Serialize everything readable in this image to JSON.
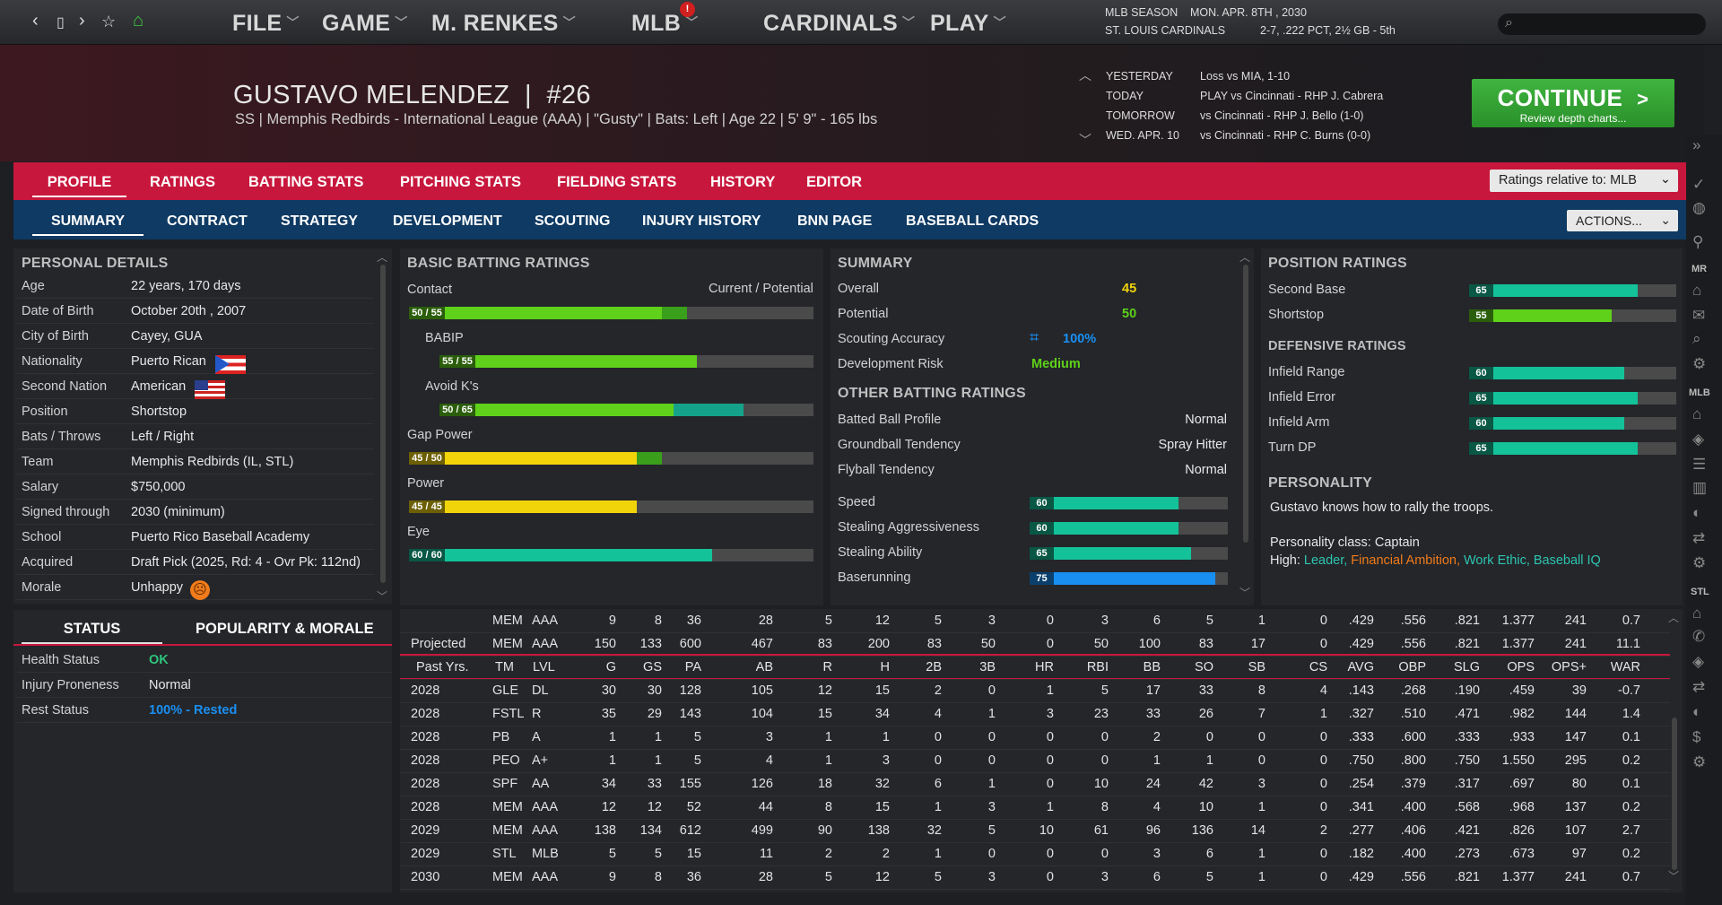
{
  "nav": {
    "back": "‹",
    "page": "▯",
    "forward": "›",
    "star": "☆",
    "home": "⌂"
  },
  "menu": {
    "file": "FILE",
    "game": "GAME",
    "manager": "M. RENKES",
    "mlb": "MLB",
    "mlb_badge": "!",
    "team": "CARDINALS",
    "play": "PLAY"
  },
  "season": {
    "label": "MLB SEASON",
    "date": "MON. APR. 8TH , 2030",
    "team": "ST. LOUIS CARDINALS",
    "record": "2-7, .222 PCT, 2½ GB - 5th"
  },
  "player": {
    "name": "GUSTAVO MELENDEZ",
    "number": "#26",
    "subtitle": "SS | Memphis Redbirds - International League (AAA)  |  \"Gusty\" | Bats: Left  |  Age 22  |  5' 9\"  - 165 lbs"
  },
  "schedule": [
    {
      "day": "YESTERDAY",
      "text": "Loss vs MIA, 1-10"
    },
    {
      "day": "TODAY",
      "text": "PLAY vs Cincinnati - RHP J. Cabrera"
    },
    {
      "day": "TOMORROW",
      "text": "vs Cincinnati - RHP J. Bello (1-0)"
    },
    {
      "day": "WED. APR. 10",
      "text": "vs Cincinnati - RHP C. Burns (0-0)"
    }
  ],
  "continue": {
    "label": "CONTINUE",
    "arrow": ">",
    "sub": "Review depth charts..."
  },
  "tabs1": [
    "PROFILE",
    "RATINGS",
    "BATTING STATS",
    "PITCHING STATS",
    "FIELDING STATS",
    "HISTORY",
    "EDITOR"
  ],
  "ratings_select": "Ratings relative to: MLB",
  "tabs2": [
    "SUMMARY",
    "CONTRACT",
    "STRATEGY",
    "DEVELOPMENT",
    "SCOUTING",
    "INJURY HISTORY",
    "BNN PAGE",
    "BASEBALL CARDS"
  ],
  "actions": "ACTIONS...",
  "personal": {
    "title": "PERSONAL DETAILS",
    "rows": [
      [
        "Age",
        "22 years, 170 days"
      ],
      [
        "Date of Birth",
        "October 20th , 2007"
      ],
      [
        "City of Birth",
        "Cayey, GUA"
      ],
      [
        "Nationality",
        "Puerto Rican"
      ],
      [
        "Second Nation",
        "American"
      ],
      [
        "Position",
        "Shortstop"
      ],
      [
        "Bats / Throws",
        "Left / Right"
      ],
      [
        "Team",
        "Memphis Redbirds (IL, STL)"
      ],
      [
        "Salary",
        "$750,000"
      ],
      [
        "Signed through",
        "2030 (minimum)"
      ],
      [
        "School",
        "Puerto Rico Baseball Academy"
      ],
      [
        "Acquired",
        "Draft Pick (2025, Rd: 4 - Ovr Pk: 112nd)"
      ],
      [
        "Morale",
        "Unhappy"
      ]
    ]
  },
  "status_tabs": [
    "STATUS",
    "POPULARITY & MORALE"
  ],
  "status": [
    [
      "Health Status",
      "OK"
    ],
    [
      "Injury Proneness",
      "Normal"
    ],
    [
      "Rest Status",
      "100% - Rested"
    ]
  ],
  "batting": {
    "title": "BASIC BATTING RATINGS",
    "cur_pot": "Current / Potential",
    "bars": [
      {
        "name": "Contact",
        "label": "50 / 55",
        "cur": 50,
        "pot": 55,
        "color": "#5fd11a",
        "pcolor": "#3a9f1a",
        "indent": false
      },
      {
        "name": "BABIP",
        "label": "55 / 55",
        "cur": 55,
        "pot": 55,
        "color": "#5fd11a",
        "pcolor": "#3a9f1a",
        "indent": true
      },
      {
        "name": "Avoid K's",
        "label": "50 / 65",
        "cur": 50,
        "pot": 65,
        "color": "#5fd11a",
        "pcolor": "#14a28a",
        "indent": true
      },
      {
        "name": "Gap Power",
        "label": "45 / 50",
        "cur": 45,
        "pot": 50,
        "color": "#f2d40a",
        "pcolor": "#3a9f1a",
        "indent": false
      },
      {
        "name": "Power",
        "label": "45 / 45",
        "cur": 45,
        "pot": 45,
        "color": "#f2d40a",
        "pcolor": "#3a9f1a",
        "indent": false
      },
      {
        "name": "Eye",
        "label": "60 / 60",
        "cur": 60,
        "pot": 60,
        "color": "#14c29a",
        "pcolor": "#14c29a",
        "indent": false
      }
    ]
  },
  "summary": {
    "title": "SUMMARY",
    "overall_label": "Overall",
    "overall": "45",
    "potential_label": "Potential",
    "potential": "50",
    "scouting_label": "Scouting Accuracy",
    "scouting": "100%",
    "devrisk_label": "Development Risk",
    "devrisk": "Medium",
    "other_title": "OTHER BATTING RATINGS",
    "other": [
      [
        "Batted Ball Profile",
        "Normal"
      ],
      [
        "Groundball Tendency",
        "Spray Hitter"
      ],
      [
        "Flyball Tendency",
        "Normal"
      ]
    ],
    "run": [
      {
        "name": "Speed",
        "value": 60,
        "color": "#14c29a"
      },
      {
        "name": "Stealing Aggressiveness",
        "value": 60,
        "color": "#14c29a"
      },
      {
        "name": "Stealing Ability",
        "value": 65,
        "color": "#14c29a"
      },
      {
        "name": "Baserunning",
        "value": 75,
        "color": "#1a8ff2"
      }
    ]
  },
  "position": {
    "title": "POSITION RATINGS",
    "rows": [
      {
        "name": "Second Base",
        "value": 65,
        "color": "#14c29a"
      },
      {
        "name": "Shortstop",
        "value": 55,
        "color": "#5fd11a"
      }
    ],
    "def_title": "DEFENSIVE RATINGS",
    "def": [
      {
        "name": "Infield Range",
        "value": 60
      },
      {
        "name": "Infield Error",
        "value": 65
      },
      {
        "name": "Infield Arm",
        "value": 60
      },
      {
        "name": "Turn DP",
        "value": 65
      }
    ]
  },
  "personality": {
    "title": "PERSONALITY",
    "desc": "Gustavo knows how to rally the troops.",
    "class": "Personality class: Captain",
    "high_label": "High:",
    "traits": [
      {
        "t": "Leader,",
        "c": "#2ec4b0"
      },
      {
        "t": "Financial Ambition,",
        "c": "#f07b1a"
      },
      {
        "t": "Work Ethic,",
        "c": "#2ec4b0"
      },
      {
        "t": "Baseball IQ",
        "c": "#2ec4b0"
      }
    ]
  },
  "stats": {
    "cols": [
      "TM",
      "LVL",
      "G",
      "GS",
      "PA",
      "AB",
      "R",
      "H",
      "2B",
      "3B",
      "HR",
      "RBI",
      "BB",
      "SO",
      "SB",
      "CS",
      "AVG",
      "OBP",
      "SLG",
      "OPS",
      "OPS+",
      "WAR"
    ],
    "top": [
      [
        "",
        "MEM",
        "AAA",
        "9",
        "8",
        "36",
        "28",
        "5",
        "12",
        "5",
        "3",
        "0",
        "3",
        "6",
        "5",
        "1",
        "0",
        ".429",
        ".556",
        ".821",
        "1.377",
        "241",
        "0.7"
      ],
      [
        "Projected",
        "MEM",
        "AAA",
        "150",
        "133",
        "600",
        "467",
        "83",
        "200",
        "83",
        "50",
        "0",
        "50",
        "100",
        "83",
        "17",
        "0",
        ".429",
        ".556",
        ".821",
        "1.377",
        "241",
        "11.1"
      ]
    ],
    "header_label": "Past Yrs.",
    "rows": [
      [
        "2028",
        "GLE",
        "DL",
        "30",
        "30",
        "128",
        "105",
        "12",
        "15",
        "2",
        "0",
        "1",
        "5",
        "17",
        "33",
        "8",
        "4",
        ".143",
        ".268",
        ".190",
        ".459",
        "39",
        "-0.7"
      ],
      [
        "2028",
        "FSTL",
        "R",
        "35",
        "29",
        "143",
        "104",
        "15",
        "34",
        "4",
        "1",
        "3",
        "23",
        "33",
        "26",
        "7",
        "1",
        ".327",
        ".510",
        ".471",
        ".982",
        "144",
        "1.4"
      ],
      [
        "2028",
        "PB",
        "A",
        "1",
        "1",
        "5",
        "3",
        "1",
        "1",
        "0",
        "0",
        "0",
        "0",
        "2",
        "0",
        "0",
        "0",
        ".333",
        ".600",
        ".333",
        ".933",
        "147",
        "0.1"
      ],
      [
        "2028",
        "PEO",
        "A+",
        "1",
        "1",
        "5",
        "4",
        "1",
        "3",
        "0",
        "0",
        "0",
        "0",
        "1",
        "1",
        "0",
        "0",
        ".750",
        ".800",
        ".750",
        "1.550",
        "295",
        "0.2"
      ],
      [
        "2028",
        "SPF",
        "AA",
        "34",
        "33",
        "155",
        "126",
        "18",
        "32",
        "6",
        "1",
        "0",
        "10",
        "24",
        "42",
        "3",
        "0",
        ".254",
        ".379",
        ".317",
        ".697",
        "80",
        "0.1"
      ],
      [
        "2028",
        "MEM",
        "AAA",
        "12",
        "12",
        "52",
        "44",
        "8",
        "15",
        "1",
        "3",
        "1",
        "8",
        "4",
        "10",
        "1",
        "0",
        ".341",
        ".400",
        ".568",
        ".968",
        "137",
        "0.2"
      ],
      [
        "2029",
        "MEM",
        "AAA",
        "138",
        "134",
        "612",
        "499",
        "90",
        "138",
        "32",
        "5",
        "10",
        "61",
        "96",
        "136",
        "14",
        "2",
        ".277",
        ".406",
        ".421",
        ".826",
        "107",
        "2.7"
      ],
      [
        "2029",
        "STL",
        "MLB",
        "5",
        "5",
        "15",
        "11",
        "2",
        "2",
        "1",
        "0",
        "0",
        "0",
        "3",
        "6",
        "1",
        "0",
        ".182",
        ".400",
        ".273",
        ".673",
        "97",
        "0.2"
      ],
      [
        "2030",
        "MEM",
        "AAA",
        "9",
        "8",
        "36",
        "28",
        "5",
        "12",
        "5",
        "3",
        "0",
        "3",
        "6",
        "5",
        "1",
        "0",
        ".429",
        ".556",
        ".821",
        "1.377",
        "241",
        "0.7"
      ]
    ]
  },
  "rightbar": {
    "mr": "MR",
    "mlb": "MLB",
    "stl": "STL"
  }
}
